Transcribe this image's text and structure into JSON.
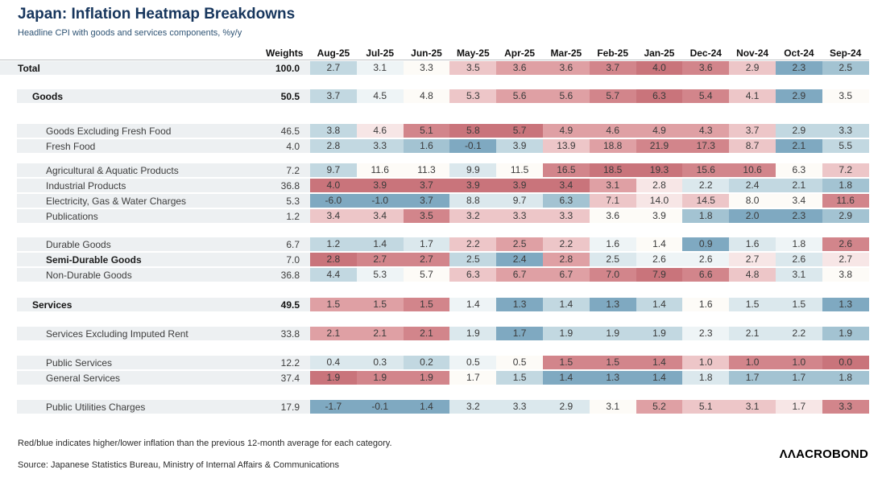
{
  "chart_data": {
    "type": "heatmap",
    "title": "Japan: Inflation Heatmap Breakdowns",
    "subtitle": "Headline CPI with goods and services components, %y/y",
    "weights_label": "Weights",
    "columns": [
      "Aug-25",
      "Jul-25",
      "Jun-25",
      "May-25",
      "Apr-25",
      "Mar-25",
      "Feb-25",
      "Jan-25",
      "Dec-24",
      "Nov-24",
      "Oct-24",
      "Sep-24"
    ],
    "palette": {
      "r4": "#c9747b",
      "r3": "#d2858b",
      "r2": "#dfa0a4",
      "r1": "#edc6c8",
      "r0": "#f7e6e6",
      "w": "#fdfbf7",
      "b0": "#eef4f6",
      "b1": "#dbe8ed",
      "b2": "#c2d8e1",
      "b3": "#a3c3d2",
      "b4": "#7fa9c1"
    },
    "rows": [
      {
        "label": "Total",
        "weight": "100.0",
        "level": 0,
        "bold": true,
        "gap_before": 0,
        "values": [
          "2.7",
          "3.1",
          "3.3",
          "3.5",
          "3.6",
          "3.6",
          "3.7",
          "4.0",
          "3.6",
          "2.9",
          "2.3",
          "2.5"
        ],
        "colors": [
          "b2",
          "b0",
          "w",
          "r1",
          "r2",
          "r2",
          "r3",
          "r4",
          "r3",
          "r1",
          "b4",
          "b3"
        ]
      },
      {
        "label": "Goods",
        "weight": "50.5",
        "level": 1,
        "bold": true,
        "gap_before": 18,
        "values": [
          "3.7",
          "4.5",
          "4.8",
          "5.3",
          "5.6",
          "5.6",
          "5.7",
          "6.3",
          "5.4",
          "4.1",
          "2.9",
          "3.5"
        ],
        "colors": [
          "b2",
          "b0",
          "w",
          "r1",
          "r2",
          "r2",
          "r3",
          "r4",
          "r3",
          "r1",
          "b4",
          "w"
        ]
      },
      {
        "label": "Goods Excluding Fresh Food",
        "weight": "46.5",
        "level": 2,
        "gap_before": 26,
        "values": [
          "3.8",
          "4.6",
          "5.1",
          "5.8",
          "5.7",
          "4.9",
          "4.6",
          "4.9",
          "4.3",
          "3.7",
          "2.9",
          "3.3"
        ],
        "colors": [
          "b2",
          "r0",
          "r3",
          "r4",
          "r4",
          "r2",
          "r2",
          "r2",
          "r2",
          "r1",
          "b2",
          "b2"
        ]
      },
      {
        "label": "Fresh Food",
        "weight": "4.0",
        "level": 2,
        "gap_before": 0,
        "values": [
          "2.8",
          "3.3",
          "1.6",
          "-0.1",
          "3.9",
          "13.9",
          "18.8",
          "21.9",
          "17.3",
          "8.7",
          "2.1",
          "5.5"
        ],
        "colors": [
          "b2",
          "b2",
          "b3",
          "b4",
          "b2",
          "r1",
          "r2",
          "r3",
          "r3",
          "r1",
          "b4",
          "b2"
        ]
      },
      {
        "label": "Agricultural & Aquatic Products",
        "weight": "7.2",
        "level": 2,
        "gap_before": 13,
        "values": [
          "9.7",
          "11.6",
          "11.3",
          "9.9",
          "11.5",
          "16.5",
          "18.5",
          "19.3",
          "15.6",
          "10.6",
          "6.3",
          "7.2"
        ],
        "colors": [
          "b2",
          "w",
          "w",
          "b1",
          "w",
          "r3",
          "r4",
          "r4",
          "r3",
          "r3",
          "w",
          "r1"
        ]
      },
      {
        "label": "Industrial Products",
        "weight": "36.8",
        "level": 2,
        "gap_before": 0,
        "values": [
          "4.0",
          "3.9",
          "3.7",
          "3.9",
          "3.9",
          "3.4",
          "3.1",
          "2.8",
          "2.2",
          "2.4",
          "2.1",
          "1.8"
        ],
        "colors": [
          "r4",
          "r4",
          "r4",
          "r4",
          "r4",
          "r4",
          "r2",
          "r0",
          "b1",
          "b2",
          "b2",
          "b3"
        ]
      },
      {
        "label": "Electricity, Gas & Water Charges",
        "weight": "5.3",
        "level": 2,
        "gap_before": 0,
        "values": [
          "-6.0",
          "-1.0",
          "3.7",
          "8.8",
          "9.7",
          "6.3",
          "7.1",
          "14.0",
          "14.5",
          "8.0",
          "3.4",
          "11.6"
        ],
        "colors": [
          "b4",
          "b4",
          "b4",
          "b1",
          "b1",
          "b3",
          "r1",
          "r0",
          "r1",
          "w",
          "w",
          "r3"
        ]
      },
      {
        "label": "Publications",
        "weight": "1.2",
        "level": 2,
        "gap_before": 0,
        "values": [
          "3.4",
          "3.4",
          "3.5",
          "3.2",
          "3.3",
          "3.3",
          "3.6",
          "3.9",
          "1.8",
          "2.0",
          "2.3",
          "2.9"
        ],
        "colors": [
          "r1",
          "r1",
          "r3",
          "r1",
          "r1",
          "r1",
          "w",
          "w",
          "b3",
          "b4",
          "b4",
          "b3"
        ]
      },
      {
        "label": "Durable Goods",
        "weight": "6.7",
        "level": 2,
        "gap_before": 18,
        "values": [
          "1.2",
          "1.4",
          "1.7",
          "2.2",
          "2.5",
          "2.2",
          "1.6",
          "1.4",
          "0.9",
          "1.6",
          "1.8",
          "2.6"
        ],
        "colors": [
          "b2",
          "b2",
          "b1",
          "r1",
          "r2",
          "r1",
          "b0",
          "w",
          "b4",
          "b1",
          "b0",
          "r3"
        ]
      },
      {
        "label": "Semi-Durable Goods",
        "weight": "7.0",
        "level": 2,
        "emph": true,
        "gap_before": 0,
        "values": [
          "2.8",
          "2.7",
          "2.7",
          "2.5",
          "2.4",
          "2.8",
          "2.5",
          "2.6",
          "2.6",
          "2.7",
          "2.6",
          "2.7"
        ],
        "colors": [
          "r4",
          "r3",
          "r3",
          "b2",
          "b4",
          "r2",
          "b1",
          "b0",
          "b0",
          "r0",
          "b1",
          "r0"
        ]
      },
      {
        "label": "Non-Durable Goods",
        "weight": "36.8",
        "level": 2,
        "gap_before": 0,
        "values": [
          "4.4",
          "5.3",
          "5.7",
          "6.3",
          "6.7",
          "6.7",
          "7.0",
          "7.9",
          "6.6",
          "4.8",
          "3.1",
          "3.8"
        ],
        "colors": [
          "b2",
          "b0",
          "w",
          "r1",
          "r2",
          "r2",
          "r3",
          "r4",
          "r3",
          "r1",
          "b1",
          "w"
        ]
      },
      {
        "label": "Services",
        "weight": "49.5",
        "level": 1,
        "bold": true,
        "gap_before": 20,
        "values": [
          "1.5",
          "1.5",
          "1.5",
          "1.4",
          "1.3",
          "1.4",
          "1.3",
          "1.4",
          "1.6",
          "1.5",
          "1.5",
          "1.3"
        ],
        "colors": [
          "r2",
          "r2",
          "r3",
          "b0",
          "b4",
          "b2",
          "b4",
          "b2",
          "w",
          "b1",
          "b1",
          "b4"
        ]
      },
      {
        "label": "Services Excluding Imputed Rent",
        "weight": "33.8",
        "level": 2,
        "gap_before": 19,
        "values": [
          "2.1",
          "2.1",
          "2.1",
          "1.9",
          "1.7",
          "1.9",
          "1.9",
          "1.9",
          "2.3",
          "2.1",
          "2.2",
          "1.9"
        ],
        "colors": [
          "r2",
          "r2",
          "r3",
          "b1",
          "b4",
          "b2",
          "b2",
          "b2",
          "b0",
          "b1",
          "b1",
          "b3"
        ]
      },
      {
        "label": "Public Services",
        "weight": "12.2",
        "level": 2,
        "gap_before": 19,
        "values": [
          "0.4",
          "0.3",
          "0.2",
          "0.5",
          "0.5",
          "1.5",
          "1.5",
          "1.4",
          "1.0",
          "1.0",
          "1.0",
          "0.0"
        ],
        "colors": [
          "b1",
          "b1",
          "b2",
          "b0",
          "w",
          "r3",
          "r3",
          "r3",
          "r1",
          "r3",
          "r3",
          "r4"
        ]
      },
      {
        "label": "General Services",
        "weight": "37.4",
        "level": 2,
        "gap_before": 0,
        "values": [
          "1.9",
          "1.9",
          "1.9",
          "1.7",
          "1.5",
          "1.4",
          "1.3",
          "1.4",
          "1.8",
          "1.7",
          "1.7",
          "1.8"
        ],
        "colors": [
          "r4",
          "r3",
          "r3",
          "w",
          "b2",
          "b4",
          "b4",
          "b4",
          "b1",
          "b3",
          "b3",
          "b3"
        ]
      },
      {
        "label": "Public Utilities Charges",
        "weight": "17.9",
        "level": 2,
        "gap_before": 19,
        "values": [
          "-1.7",
          "-0.1",
          "1.4",
          "3.2",
          "3.3",
          "2.9",
          "3.1",
          "5.2",
          "5.1",
          "3.1",
          "1.7",
          "3.3"
        ],
        "colors": [
          "b4",
          "b4",
          "b4",
          "b1",
          "b1",
          "b1",
          "w",
          "r2",
          "r1",
          "r1",
          "r0",
          "r3"
        ]
      }
    ],
    "footnote": "Red/blue indicates higher/lower inflation than the previous 12-month average for each category.",
    "source": "Source: Japanese Statistics Bureau, Ministry of Internal Affairs & Communications",
    "logo_text": "ΛΛACROBOND"
  }
}
